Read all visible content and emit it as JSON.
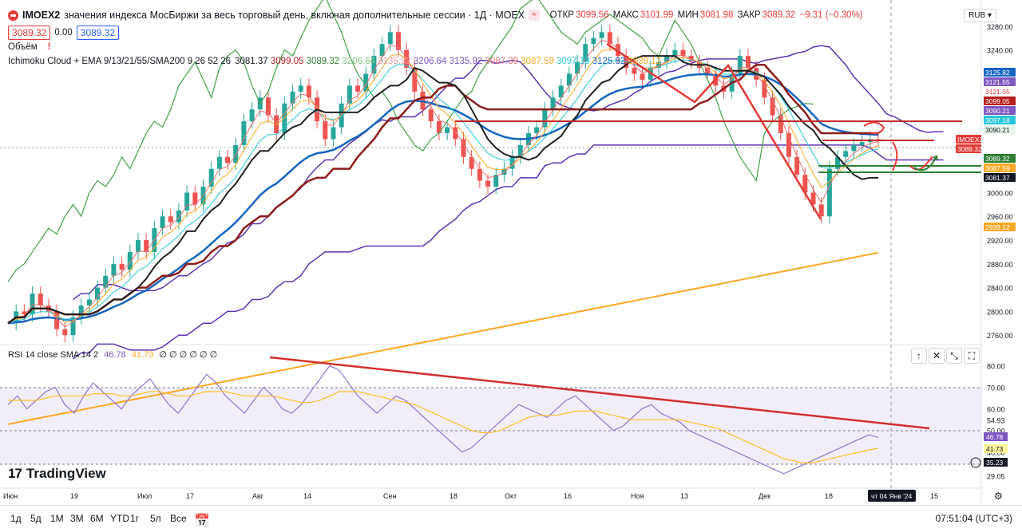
{
  "header": {
    "symbol": "IMOEX2",
    "description": "значения индекса МосБиржи за весь торговый день, включая дополнительные сессии · 1Д · MOEX",
    "ohlc": {
      "o_label": "ОТКР",
      "o": "3099.56",
      "h_label": "МАКС",
      "h": "3101.99",
      "l_label": "МИН",
      "l": "3081.98",
      "c_label": "ЗАКР",
      "c": "3089.32",
      "chg": "−9.31 (−0.30%)"
    },
    "bid": "3089.32",
    "spread": "0.00",
    "ask": "3089.32",
    "volume_label": "Объём",
    "volume_warning": "!",
    "indicator_line": "Ichimoku Cloud + EMA 9/13/21/55/SMA200 9 26 52 26",
    "indicator_values": [
      {
        "v": "3081.37",
        "color": "#131722"
      },
      {
        "v": "3099.05",
        "color": "#b71c1c"
      },
      {
        "v": "3089.32",
        "color": "#2e7d32"
      },
      {
        "v": "3206.64",
        "color": "#81c784"
      },
      {
        "v": "3135.92",
        "color": "#ef9a9a"
      },
      {
        "v": "3206.64",
        "color": "#7e57c2"
      },
      {
        "v": "3135.92",
        "color": "#7e57c2"
      },
      {
        "v": "3087.39",
        "color": "#e57373"
      },
      {
        "v": "3087.59",
        "color": "#f9a825"
      },
      {
        "v": "3097.18",
        "color": "#26c6da"
      },
      {
        "v": "3125.82",
        "color": "#1565c0"
      },
      {
        "v": "2939.12",
        "color": "#f9a825"
      }
    ],
    "currency": "RUB"
  },
  "rsi_legend": {
    "label": "RSI 14 close SMA 14 2",
    "v1": "46.78",
    "v2": "41.73",
    "zeros": "∅ ∅ ∅ ∅ ∅ ∅"
  },
  "chart_data": [
    {
      "type": "candlestick",
      "title": "IMOEX2",
      "y_range": [
        2720,
        3300
      ],
      "price_ticks": [
        3280,
        3240,
        3000,
        2960,
        2920,
        2880,
        2840,
        2800,
        2760
      ],
      "x_tick_labels": [
        "Июн",
        "19",
        "Июл",
        "17",
        "Авг",
        "14",
        "Сен",
        "18",
        "Окт",
        "16",
        "Ноя",
        "13",
        "Дек",
        "18",
        "15"
      ],
      "crosshair_date": "чт 04 Янв '24",
      "last_price": 3089.32,
      "price_labels": [
        {
          "v": "3125.82",
          "color": "#1565c0"
        },
        {
          "v": "3121.55",
          "color": "#7e57c2"
        },
        {
          "v": "3121.55",
          "color": "#ffffff",
          "text": "#e53935"
        },
        {
          "v": "3099.05",
          "color": "#b71c1c"
        },
        {
          "v": "3090.21",
          "color": "#7e57c2"
        },
        {
          "v": "3097.18",
          "color": "#26c6da"
        },
        {
          "v": "3090.21",
          "color": "#e8f5e9",
          "text": "#131722"
        },
        {
          "v": "IMOEX2",
          "color": "#e53935"
        },
        {
          "v": "3089.32",
          "color": "#e53935"
        },
        {
          "v": "3089.32",
          "color": "#2e7d32"
        },
        {
          "v": "3087.59",
          "color": "#f9a825"
        },
        {
          "v": "3081.37",
          "color": "#131722"
        },
        {
          "v": "2939.12",
          "color": "#f9a825"
        }
      ],
      "series": [
        {
          "name": "Close (approx.)",
          "values": [
            2780,
            2800,
            2795,
            2830,
            2810,
            2800,
            2770,
            2760,
            2790,
            2810,
            2820,
            2840,
            2860,
            2880,
            2870,
            2900,
            2920,
            2900,
            2940,
            2960,
            2950,
            2970,
            3000,
            2980,
            3010,
            3040,
            3060,
            3050,
            3080,
            3120,
            3140,
            3160,
            3130,
            3100,
            3150,
            3170,
            3180,
            3160,
            3120,
            3090,
            3110,
            3150,
            3180,
            3170,
            3200,
            3230,
            3250,
            3270,
            3240,
            3210,
            3170,
            3140,
            3120,
            3100,
            3110,
            3090,
            3060,
            3040,
            3020,
            3010,
            3030,
            3040,
            3060,
            3080,
            3100,
            3110,
            3140,
            3160,
            3180,
            3200,
            3220,
            3250,
            3260,
            3270,
            3250,
            3230,
            3210,
            3200,
            3190,
            3210,
            3220,
            3230,
            3240,
            3230,
            3220,
            3210,
            3200,
            3180,
            3170,
            3200,
            3230,
            3210,
            3190,
            3160,
            3130,
            3100,
            3060,
            3030,
            3000,
            2980,
            2960,
            3040,
            3060,
            3070,
            3080,
            3085,
            3090,
            3089
          ]
        }
      ]
    },
    {
      "type": "line",
      "title": "RSI 14 close SMA 14 2",
      "y_range": [
        27,
        85
      ],
      "rsi_ticks": [
        80.0,
        70.0,
        60.0,
        54.93,
        50.0,
        40.0,
        29.05
      ],
      "rsi_labels": [
        {
          "v": "46.78",
          "color": "#7e57c2"
        },
        {
          "v": "41.73",
          "color": "#fff59d",
          "text": "#131722"
        },
        {
          "v": "35.23",
          "color": "#131722"
        }
      ],
      "series": [
        {
          "name": "RSI",
          "color": "#9575cd",
          "values": [
            62,
            66,
            60,
            64,
            68,
            70,
            62,
            58,
            66,
            72,
            68,
            64,
            60,
            66,
            70,
            74,
            68,
            62,
            58,
            64,
            70,
            76,
            72,
            66,
            62,
            58,
            64,
            70,
            66,
            60,
            58,
            62,
            68,
            74,
            80,
            78,
            72,
            66,
            62,
            58,
            62,
            66,
            64,
            60,
            56,
            52,
            48,
            44,
            40,
            42,
            46,
            50,
            54,
            58,
            62,
            60,
            58,
            56,
            60,
            64,
            66,
            62,
            58,
            54,
            50,
            52,
            56,
            60,
            62,
            58,
            56,
            54,
            50,
            48,
            46,
            44,
            42,
            40,
            38,
            36,
            34,
            32,
            30,
            32,
            34,
            36,
            38,
            40,
            42,
            44,
            46,
            48,
            46.78
          ]
        },
        {
          "name": "SMA",
          "color": "#fbc02d",
          "values": [
            64,
            64,
            64,
            64,
            65,
            66,
            66,
            66,
            66,
            67,
            67,
            67,
            66,
            66,
            67,
            68,
            68,
            67,
            66,
            66,
            67,
            68,
            68,
            68,
            67,
            66,
            66,
            66,
            66,
            65,
            64,
            63,
            63,
            64,
            66,
            68,
            68,
            68,
            67,
            66,
            65,
            64,
            63,
            62,
            60,
            58,
            56,
            54,
            52,
            50,
            49,
            49,
            50,
            52,
            54,
            56,
            57,
            57,
            57,
            58,
            59,
            59,
            59,
            58,
            57,
            56,
            55,
            55,
            55,
            55,
            55,
            55,
            54,
            53,
            52,
            51,
            49,
            47,
            45,
            43,
            41,
            39,
            37,
            36,
            35,
            35,
            36,
            37,
            38,
            39,
            40,
            41,
            41.73
          ]
        }
      ]
    }
  ],
  "bottom_bar": {
    "buttons": [
      "1д",
      "5д",
      "1М",
      "3М",
      "6М",
      "YTD",
      "1г",
      "5л",
      "Все"
    ],
    "timezone": "07:51:04 (UTC+3)"
  },
  "branding": {
    "name": "TradingView"
  }
}
